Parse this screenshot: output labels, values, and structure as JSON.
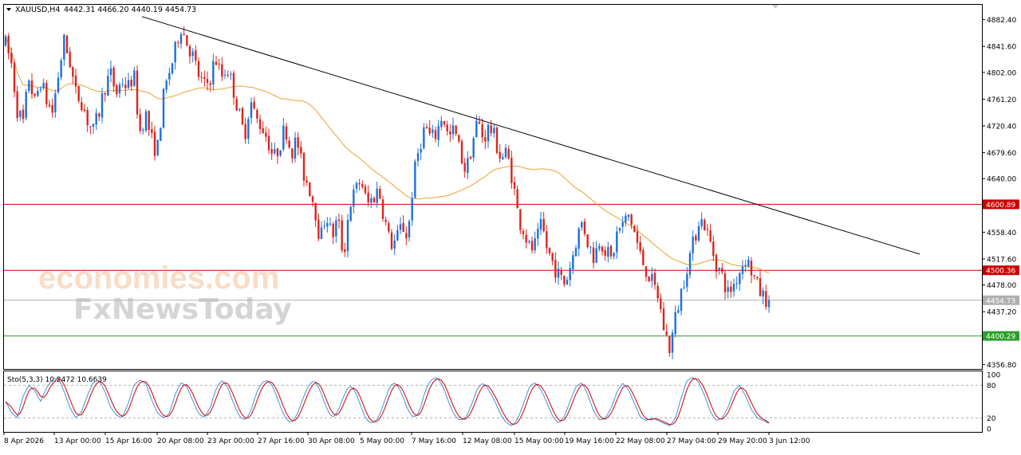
{
  "main_panel": {
    "header_title": "XAUUSD,H4",
    "header_ohlc": "4442.31 4466.20 4440.19 4454.73"
  },
  "watermark": {
    "line1": "economies.com",
    "line2": "FxNewsToday"
  },
  "stochastic_panel": {
    "label": "Sto(5,3,3) 10.2472 10.6639",
    "k_value": 10.2472,
    "d_value": 10.6639,
    "levels": [
      "100",
      "80",
      "20",
      "0"
    ],
    "colors": {
      "k": "#4a90d9",
      "d": "#cc0000"
    }
  },
  "colors": {
    "bull": "#1e6fd9",
    "bear": "#d9251d",
    "ma": "#f0a030",
    "resistance": "#cc0000",
    "support": "#2aa02a",
    "trendline": "#000000"
  },
  "chart_data": {
    "type": "candlestick",
    "symbol": "XAUUSD",
    "timeframe": "H4",
    "y_range": [
      4350,
      4905
    ],
    "y_ticks": [
      "4882.40",
      "4841.60",
      "4802.00",
      "4761.20",
      "4720.40",
      "4679.60",
      "4640.00",
      "4558.40",
      "4517.60",
      "4478.00",
      "4437.20",
      "4356.80"
    ],
    "x_ticks": [
      "8 Apr 2026",
      "13 Apr 00:00",
      "15 Apr 16:00",
      "20 Apr 08:00",
      "23 Apr 00:00",
      "27 Apr 16:00",
      "30 Apr 08:00",
      "5 May 00:00",
      "7 May 16:00",
      "12 May 08:00",
      "15 May 00:00",
      "19 May 16:00",
      "22 May 08:00",
      "27 May 04:00",
      "29 May 20:00",
      "3 Jun 12:00"
    ],
    "horizontal_levels": [
      {
        "label": "4600.89",
        "value": 4600.89,
        "color": "#cc0000"
      },
      {
        "label": "4500.36",
        "value": 4500.36,
        "color": "#cc0000"
      },
      {
        "label": "4454.73",
        "value": 4454.73,
        "color": "#b0b0b0"
      },
      {
        "label": "4400.29",
        "value": 4400.29,
        "color": "#2aa02a"
      }
    ],
    "trendline": {
      "from": [
        0.1395,
        4887
      ],
      "to": [
        0.8977,
        4525
      ]
    },
    "price_path": [
      4845,
      4815,
      4745,
      4725,
      4795,
      4755,
      4790,
      4760,
      4740,
      4795,
      4850,
      4820,
      4770,
      4760,
      4730,
      4710,
      4740,
      4780,
      4800,
      4770,
      4790,
      4778,
      4800,
      4710,
      4740,
      4700,
      4680,
      4760,
      4800,
      4830,
      4875,
      4850,
      4830,
      4800,
      4780,
      4790,
      4825,
      4795,
      4810,
      4780,
      4740,
      4705,
      4760,
      4730,
      4720,
      4700,
      4670,
      4690,
      4720,
      4680,
      4700,
      4650,
      4630,
      4600,
      4545,
      4590,
      4550,
      4580,
      4520,
      4600,
      4620,
      4640,
      4600,
      4610,
      4625,
      4580,
      4540,
      4545,
      4570,
      4550,
      4640,
      4690,
      4720,
      4700,
      4710,
      4740,
      4700,
      4715,
      4680,
      4650,
      4690,
      4730,
      4700,
      4720,
      4700,
      4670,
      4680,
      4640,
      4580,
      4560,
      4530,
      4540,
      4570,
      4530,
      4510,
      4490,
      4480,
      4510,
      4550,
      4575,
      4540,
      4520,
      4550,
      4530,
      4515,
      4560,
      4570,
      4585,
      4555,
      4520,
      4500,
      4480,
      4460,
      4410,
      4380,
      4430,
      4470,
      4510,
      4540,
      4580,
      4570,
      4540,
      4510,
      4490,
      4465,
      4480,
      4500,
      4520,
      4500,
      4475,
      4460,
      4455
    ],
    "ma_period": 50,
    "stochastic": {
      "k_last": 10.2472,
      "d_last": 10.6639,
      "levels": [
        100,
        80,
        20,
        0
      ],
      "path": [
        50,
        30,
        20,
        60,
        80,
        70,
        50,
        75,
        90,
        95,
        70,
        40,
        20,
        30,
        60,
        85,
        90,
        70,
        40,
        25,
        20,
        45,
        80,
        90,
        85,
        55,
        30,
        20,
        25,
        60,
        85,
        80,
        55,
        30,
        20,
        35,
        70,
        90,
        80,
        50,
        25,
        15,
        30,
        65,
        85,
        90,
        75,
        45,
        20,
        10,
        25,
        55,
        80,
        90,
        70,
        40,
        20,
        30,
        60,
        80,
        70,
        40,
        15,
        10,
        20,
        50,
        80,
        85,
        65,
        35,
        20,
        30,
        70,
        90,
        95,
        80,
        50,
        25,
        15,
        20,
        45,
        75,
        85,
        70,
        50,
        25,
        10,
        5,
        20,
        50,
        80,
        85,
        70,
        45,
        20,
        10,
        25,
        55,
        80,
        85,
        60,
        30,
        15,
        20,
        40,
        70,
        85,
        70,
        45,
        20,
        15,
        20,
        15,
        10,
        5,
        20,
        60,
        90,
        95,
        85,
        60,
        30,
        15,
        20,
        40,
        70,
        80,
        60,
        35,
        20,
        15,
        10
      ]
    }
  }
}
